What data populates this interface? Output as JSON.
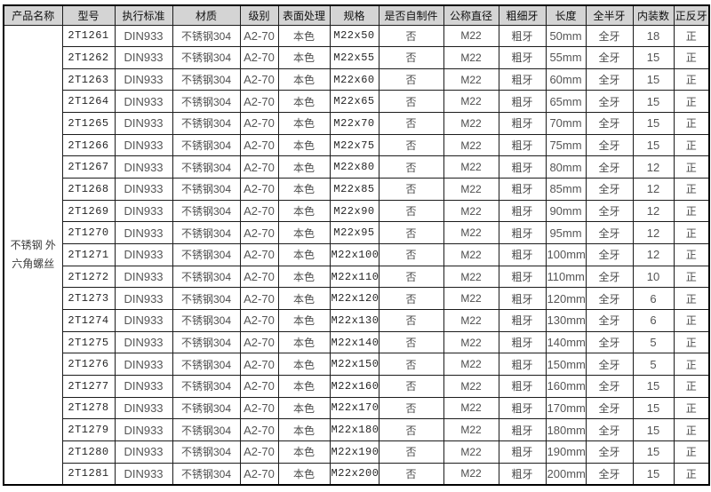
{
  "colors": {
    "header_bg": "#d4d4d4",
    "border": "#000000",
    "text": "#4d4d4d",
    "background": "#ffffff"
  },
  "table": {
    "product_name": "不锈钢 外六角螺丝",
    "headers": [
      "产品名称",
      "型号",
      "执行标准",
      "材质",
      "级别",
      "表面处理",
      "规格",
      "是否自制件",
      "公称直径",
      "粗细牙",
      "长度",
      "全半牙",
      "内装数",
      "正反牙"
    ],
    "column_keys": [
      "product_name",
      "model",
      "standard",
      "material",
      "grade",
      "surface",
      "spec",
      "self_made",
      "diameter",
      "thread",
      "length",
      "coverage",
      "qty",
      "direction"
    ],
    "rows": [
      {
        "model": "2T1261",
        "standard": "DIN933",
        "material": "不锈钢304",
        "grade": "A2-70",
        "surface": "本色",
        "spec": "M22x50",
        "self_made": "否",
        "diameter": "M22",
        "thread": "粗牙",
        "length": "50mm",
        "coverage": "全牙",
        "qty": "18",
        "direction": "正"
      },
      {
        "model": "2T1262",
        "standard": "DIN933",
        "material": "不锈钢304",
        "grade": "A2-70",
        "surface": "本色",
        "spec": "M22x55",
        "self_made": "否",
        "diameter": "M22",
        "thread": "粗牙",
        "length": "55mm",
        "coverage": "全牙",
        "qty": "15",
        "direction": "正"
      },
      {
        "model": "2T1263",
        "standard": "DIN933",
        "material": "不锈钢304",
        "grade": "A2-70",
        "surface": "本色",
        "spec": "M22x60",
        "self_made": "否",
        "diameter": "M22",
        "thread": "粗牙",
        "length": "60mm",
        "coverage": "全牙",
        "qty": "15",
        "direction": "正"
      },
      {
        "model": "2T1264",
        "standard": "DIN933",
        "material": "不锈钢304",
        "grade": "A2-70",
        "surface": "本色",
        "spec": "M22x65",
        "self_made": "否",
        "diameter": "M22",
        "thread": "粗牙",
        "length": "65mm",
        "coverage": "全牙",
        "qty": "15",
        "direction": "正"
      },
      {
        "model": "2T1265",
        "standard": "DIN933",
        "material": "不锈钢304",
        "grade": "A2-70",
        "surface": "本色",
        "spec": "M22x70",
        "self_made": "否",
        "diameter": "M22",
        "thread": "粗牙",
        "length": "70mm",
        "coverage": "全牙",
        "qty": "15",
        "direction": "正"
      },
      {
        "model": "2T1266",
        "standard": "DIN933",
        "material": "不锈钢304",
        "grade": "A2-70",
        "surface": "本色",
        "spec": "M22x75",
        "self_made": "否",
        "diameter": "M22",
        "thread": "粗牙",
        "length": "75mm",
        "coverage": "全牙",
        "qty": "15",
        "direction": "正"
      },
      {
        "model": "2T1267",
        "standard": "DIN933",
        "material": "不锈钢304",
        "grade": "A2-70",
        "surface": "本色",
        "spec": "M22x80",
        "self_made": "否",
        "diameter": "M22",
        "thread": "粗牙",
        "length": "80mm",
        "coverage": "全牙",
        "qty": "12",
        "direction": "正"
      },
      {
        "model": "2T1268",
        "standard": "DIN933",
        "material": "不锈钢304",
        "grade": "A2-70",
        "surface": "本色",
        "spec": "M22x85",
        "self_made": "否",
        "diameter": "M22",
        "thread": "粗牙",
        "length": "85mm",
        "coverage": "全牙",
        "qty": "12",
        "direction": "正"
      },
      {
        "model": "2T1269",
        "standard": "DIN933",
        "material": "不锈钢304",
        "grade": "A2-70",
        "surface": "本色",
        "spec": "M22x90",
        "self_made": "否",
        "diameter": "M22",
        "thread": "粗牙",
        "length": "90mm",
        "coverage": "全牙",
        "qty": "12",
        "direction": "正"
      },
      {
        "model": "2T1270",
        "standard": "DIN933",
        "material": "不锈钢304",
        "grade": "A2-70",
        "surface": "本色",
        "spec": "M22x95",
        "self_made": "否",
        "diameter": "M22",
        "thread": "粗牙",
        "length": "95mm",
        "coverage": "全牙",
        "qty": "12",
        "direction": "正"
      },
      {
        "model": "2T1271",
        "standard": "DIN933",
        "material": "不锈钢304",
        "grade": "A2-70",
        "surface": "本色",
        "spec": "M22x100",
        "self_made": "否",
        "diameter": "M22",
        "thread": "粗牙",
        "length": "100mm",
        "coverage": "全牙",
        "qty": "12",
        "direction": "正"
      },
      {
        "model": "2T1272",
        "standard": "DIN933",
        "material": "不锈钢304",
        "grade": "A2-70",
        "surface": "本色",
        "spec": "M22x110",
        "self_made": "否",
        "diameter": "M22",
        "thread": "粗牙",
        "length": "110mm",
        "coverage": "全牙",
        "qty": "10",
        "direction": "正"
      },
      {
        "model": "2T1273",
        "standard": "DIN933",
        "material": "不锈钢304",
        "grade": "A2-70",
        "surface": "本色",
        "spec": "M22x120",
        "self_made": "否",
        "diameter": "M22",
        "thread": "粗牙",
        "length": "120mm",
        "coverage": "全牙",
        "qty": "6",
        "direction": "正"
      },
      {
        "model": "2T1274",
        "standard": "DIN933",
        "material": "不锈钢304",
        "grade": "A2-70",
        "surface": "本色",
        "spec": "M22x130",
        "self_made": "否",
        "diameter": "M22",
        "thread": "粗牙",
        "length": "130mm",
        "coverage": "全牙",
        "qty": "6",
        "direction": "正"
      },
      {
        "model": "2T1275",
        "standard": "DIN933",
        "material": "不锈钢304",
        "grade": "A2-70",
        "surface": "本色",
        "spec": "M22x140",
        "self_made": "否",
        "diameter": "M22",
        "thread": "粗牙",
        "length": "140mm",
        "coverage": "全牙",
        "qty": "5",
        "direction": "正"
      },
      {
        "model": "2T1276",
        "standard": "DIN933",
        "material": "不锈钢304",
        "grade": "A2-70",
        "surface": "本色",
        "spec": "M22x150",
        "self_made": "否",
        "diameter": "M22",
        "thread": "粗牙",
        "length": "150mm",
        "coverage": "全牙",
        "qty": "5",
        "direction": "正"
      },
      {
        "model": "2T1277",
        "standard": "DIN933",
        "material": "不锈钢304",
        "grade": "A2-70",
        "surface": "本色",
        "spec": "M22x160",
        "self_made": "否",
        "diameter": "M22",
        "thread": "粗牙",
        "length": "160mm",
        "coverage": "全牙",
        "qty": "15",
        "direction": "正"
      },
      {
        "model": "2T1278",
        "standard": "DIN933",
        "material": "不锈钢304",
        "grade": "A2-70",
        "surface": "本色",
        "spec": "M22x170",
        "self_made": "否",
        "diameter": "M22",
        "thread": "粗牙",
        "length": "170mm",
        "coverage": "全牙",
        "qty": "15",
        "direction": "正"
      },
      {
        "model": "2T1279",
        "standard": "DIN933",
        "material": "不锈钢304",
        "grade": "A2-70",
        "surface": "本色",
        "spec": "M22x180",
        "self_made": "否",
        "diameter": "M22",
        "thread": "粗牙",
        "length": "180mm",
        "coverage": "全牙",
        "qty": "15",
        "direction": "正"
      },
      {
        "model": "2T1280",
        "standard": "DIN933",
        "material": "不锈钢304",
        "grade": "A2-70",
        "surface": "本色",
        "spec": "M22x190",
        "self_made": "否",
        "diameter": "M22",
        "thread": "粗牙",
        "length": "190mm",
        "coverage": "全牙",
        "qty": "15",
        "direction": "正"
      },
      {
        "model": "2T1281",
        "standard": "DIN933",
        "material": "不锈钢304",
        "grade": "A2-70",
        "surface": "本色",
        "spec": "M22x200",
        "self_made": "否",
        "diameter": "M22",
        "thread": "粗牙",
        "length": "200mm",
        "coverage": "全牙",
        "qty": "15",
        "direction": "正"
      }
    ]
  }
}
